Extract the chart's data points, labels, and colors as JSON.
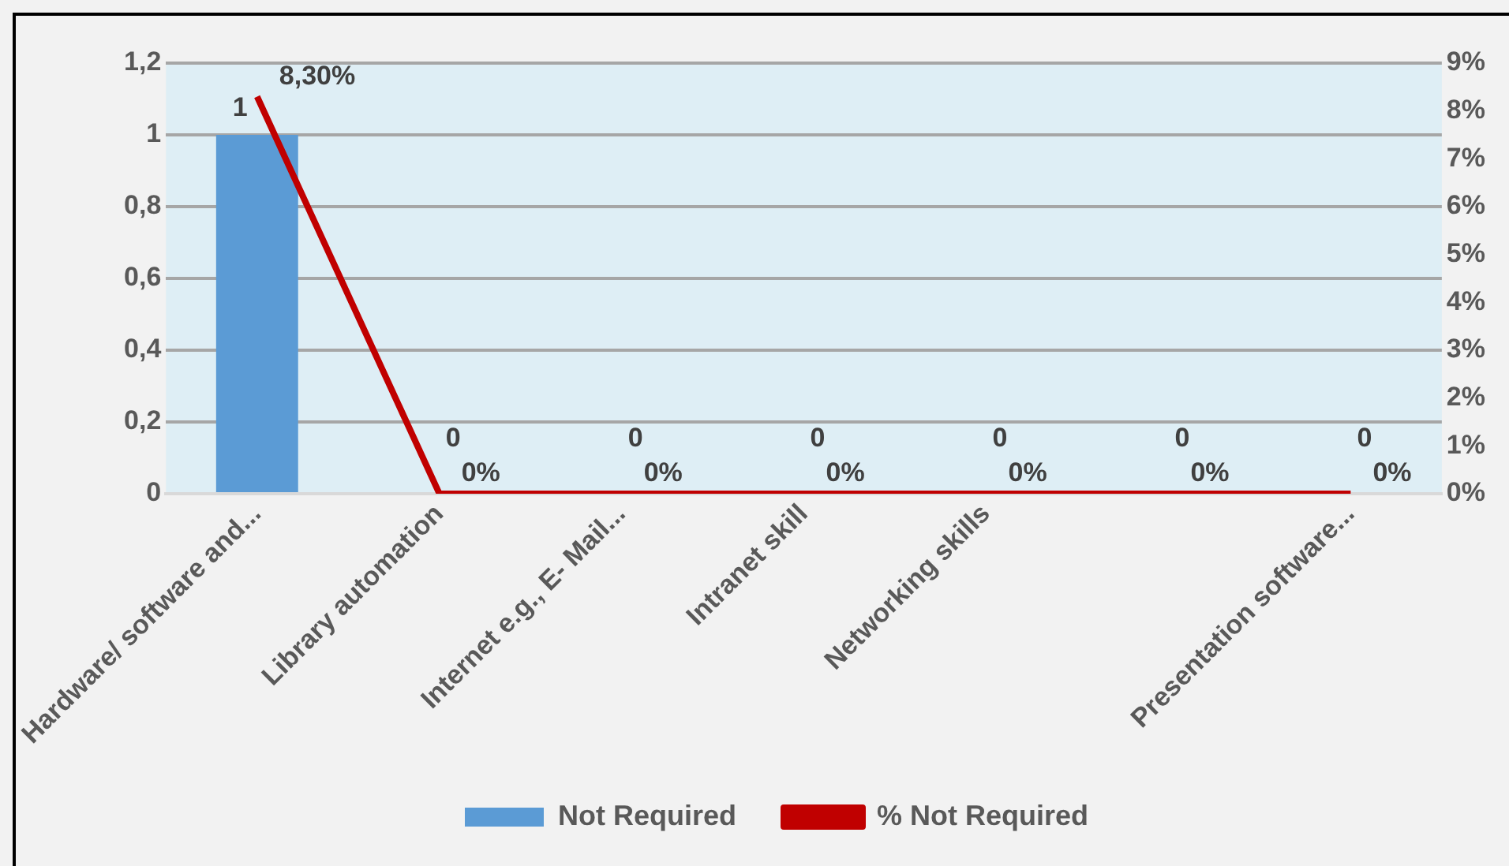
{
  "chart_data": {
    "type": "bar",
    "categories": [
      "Hardware/ software and...",
      "Library automation",
      "Internet e.g., E- Mail...",
      "Intranet skill",
      "Networking skills",
      null,
      "Presentation software..."
    ],
    "series": [
      {
        "name": "Not Required",
        "color": "#5b9bd5",
        "values": [
          1,
          0,
          0,
          0,
          0,
          0,
          0
        ],
        "value_labels": [
          "1",
          "0",
          "0",
          "0",
          "0",
          "0",
          "0"
        ]
      },
      {
        "name": "% Not Required",
        "type": "line",
        "axis": "y2",
        "color": "#c00000",
        "values": [
          8.3,
          0,
          0,
          0,
          0,
          0,
          0
        ],
        "value_labels": [
          "8,30%",
          "0%",
          "0%",
          "0%",
          "0%",
          "0%",
          "0%"
        ]
      }
    ],
    "ylim": [
      0,
      1.2
    ],
    "yticks": [
      0,
      {
        "value": 0.2,
        "label": "0,2"
      },
      {
        "value": 0.4,
        "label": "0,4"
      },
      {
        "value": 0.6,
        "label": "0,6"
      },
      {
        "value": 0.8,
        "label": "0,8"
      },
      1,
      {
        "value": 1.2,
        "label": "1,2"
      }
    ],
    "y2lim": [
      0,
      9
    ],
    "y2ticks": [
      {
        "value": 0,
        "label": "0%"
      },
      {
        "value": 1,
        "label": "1%"
      },
      {
        "value": 2,
        "label": "2%"
      },
      {
        "value": 3,
        "label": "3%"
      },
      {
        "value": 4,
        "label": "4%"
      },
      {
        "value": 5,
        "label": "5%"
      },
      {
        "value": 6,
        "label": "6%"
      },
      {
        "value": 7,
        "label": "7%"
      },
      {
        "value": 8,
        "label": "8%"
      },
      {
        "value": 9,
        "label": "9%"
      }
    ],
    "grid": "y",
    "legend": "bottom",
    "marker": "none",
    "line_style": "solid"
  }
}
